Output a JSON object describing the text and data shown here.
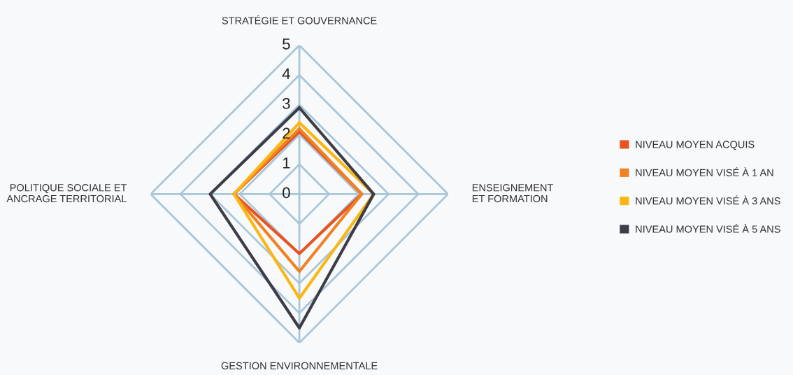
{
  "chart_data": {
    "type": "radar",
    "categories": [
      "STRATÉGIE ET GOUVERNANCE",
      "ENSEIGNEMENT\nET FORMATION",
      "GESTION ENVIRONNEMENTALE",
      "POLITIQUE SOCIALE ET\nANCRAGE TERRITORIAL"
    ],
    "series": [
      {
        "name": "NIVEAU MOYEN ACQUIS",
        "color": "#e8531f",
        "values": [
          2.1,
          2.1,
          2.0,
          2.2
        ]
      },
      {
        "name": "NIVEAU MOYEN VISÉ À 1 AN",
        "color": "#f28122",
        "values": [
          2.2,
          2.1,
          2.6,
          2.2
        ]
      },
      {
        "name": "NIVEAU MOYEN VISÉ À 3 ANS",
        "color": "#fbb614",
        "values": [
          2.4,
          2.5,
          3.5,
          2.2
        ]
      },
      {
        "name": "NIVEAU MOYEN VISÉ À 5 ANS",
        "color": "#3d3c47",
        "values": [
          2.9,
          2.5,
          4.5,
          3.0
        ]
      }
    ],
    "ylim": [
      0,
      5
    ],
    "yticks": [
      0,
      1,
      2,
      3,
      4,
      5
    ],
    "grid": true,
    "legend": "right",
    "marker": "none",
    "line_style": "solid"
  }
}
